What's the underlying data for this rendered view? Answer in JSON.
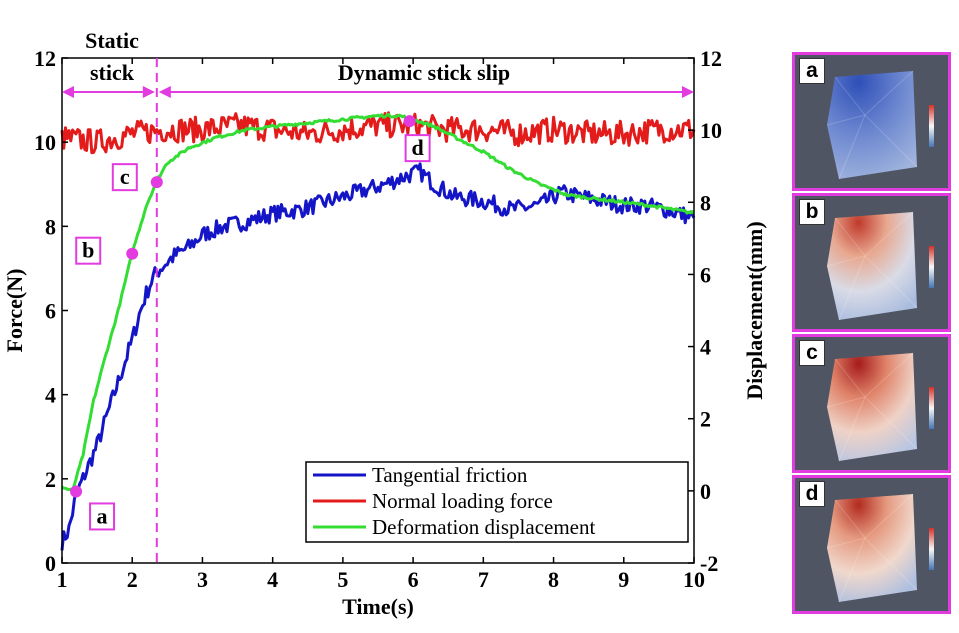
{
  "chart_data": {
    "type": "line",
    "xlabel": "Time(s)",
    "ylabel_left": "Force(N)",
    "ylabel_right": "Displacement(mm)",
    "xlim": [
      1,
      10
    ],
    "ylim_left": [
      0,
      12
    ],
    "ylim_right": [
      -2,
      12
    ],
    "x_ticks": [
      "1",
      "2",
      "3",
      "4",
      "5",
      "6",
      "7",
      "8",
      "9",
      "10"
    ],
    "y_left_ticks": [
      "0",
      "2",
      "4",
      "6",
      "8",
      "10",
      "12"
    ],
    "y_right_ticks": [
      "-2",
      "0",
      "2",
      "4",
      "6",
      "8",
      "10",
      "12"
    ],
    "grid": false,
    "legend_position": "bottom-right",
    "vline_x": 2.35,
    "annotations": {
      "static_stick": [
        "Static",
        "stick"
      ],
      "dynamic_stick_slip": "Dynamic stick slip",
      "static_range": [
        1.0,
        2.35
      ],
      "dynamic_range": [
        2.35,
        10.0
      ]
    },
    "series": [
      {
        "name": "Tangential friction",
        "axis": "left",
        "color": "#1515c8",
        "x": [
          1.0,
          1.1,
          1.2,
          1.3,
          1.4,
          1.5,
          1.6,
          1.7,
          1.8,
          1.9,
          2.0,
          2.1,
          2.2,
          2.3,
          2.4,
          2.6,
          2.8,
          3.0,
          3.3,
          3.6,
          4.0,
          4.4,
          4.8,
          5.2,
          5.6,
          5.9,
          6.1,
          6.3,
          6.6,
          7.0,
          7.4,
          7.8,
          8.1,
          8.4,
          8.7,
          9.0,
          9.3,
          9.6,
          10.0
        ],
        "y": [
          0.5,
          0.8,
          1.6,
          2.0,
          2.4,
          2.8,
          3.3,
          3.8,
          4.3,
          4.8,
          5.3,
          5.9,
          6.4,
          6.8,
          7.0,
          7.3,
          7.5,
          7.8,
          8.0,
          8.1,
          8.3,
          8.4,
          8.6,
          8.8,
          9.0,
          9.2,
          9.3,
          9.0,
          8.7,
          8.6,
          8.4,
          8.5,
          8.8,
          8.7,
          8.6,
          8.5,
          8.5,
          8.4,
          8.2
        ],
        "noise": 0.2
      },
      {
        "name": "Normal loading force",
        "axis": "left",
        "color": "#e41b1b",
        "x": [
          1.0,
          1.5,
          2.0,
          2.5,
          3.0,
          3.5,
          4.0,
          4.5,
          5.0,
          5.5,
          6.0,
          6.5,
          7.0,
          7.5,
          8.0,
          8.5,
          9.0,
          9.5,
          10.0
        ],
        "y": [
          10.1,
          10.0,
          10.2,
          10.3,
          10.3,
          10.4,
          10.3,
          10.2,
          10.3,
          10.4,
          10.4,
          10.3,
          10.3,
          10.2,
          10.3,
          10.2,
          10.2,
          10.3,
          10.3
        ],
        "noise": 0.3
      },
      {
        "name": "Deformation displacement",
        "axis": "right",
        "color": "#33dd33",
        "x": [
          1.0,
          1.15,
          1.3,
          1.45,
          1.6,
          1.8,
          2.0,
          2.2,
          2.35,
          2.5,
          2.8,
          3.2,
          3.6,
          4.0,
          4.5,
          5.0,
          5.5,
          5.8,
          6.0,
          6.3,
          6.6,
          7.0,
          7.4,
          7.8,
          8.2,
          8.6,
          9.0,
          9.4,
          9.7,
          10.0
        ],
        "y": [
          0.1,
          0.0,
          1.0,
          2.5,
          3.6,
          5.0,
          6.6,
          7.9,
          8.6,
          9.1,
          9.5,
          9.8,
          10.0,
          10.1,
          10.2,
          10.3,
          10.4,
          10.4,
          10.3,
          10.1,
          9.8,
          9.4,
          8.9,
          8.5,
          8.2,
          8.1,
          8.0,
          7.9,
          7.8,
          7.7
        ],
        "noise": 0.04
      }
    ],
    "points": [
      {
        "label": "a",
        "x": 1.2,
        "y": 1.7
      },
      {
        "label": "b",
        "x": 2.0,
        "y": 7.35
      },
      {
        "label": "c",
        "x": 2.35,
        "y": 9.05
      },
      {
        "label": "d",
        "x": 5.95,
        "y": 10.5
      }
    ]
  },
  "panels": [
    {
      "label": "a",
      "state": "low-deformation",
      "colors": [
        "#2f4fb8",
        "#6b86cf",
        "#9fb3dd"
      ]
    },
    {
      "label": "b",
      "state": "moderate-deformation",
      "colors": [
        "#c0392b",
        "#e8a890",
        "#d9dbe6",
        "#a9bcde"
      ]
    },
    {
      "label": "c",
      "state": "high-deformation",
      "colors": [
        "#a51b1b",
        "#e0846a",
        "#efd2c6",
        "#b9c6e2"
      ]
    },
    {
      "label": "d",
      "state": "high-deformation",
      "colors": [
        "#b22a1f",
        "#e59a80",
        "#f0d8cc",
        "#aebfe0"
      ]
    }
  ]
}
